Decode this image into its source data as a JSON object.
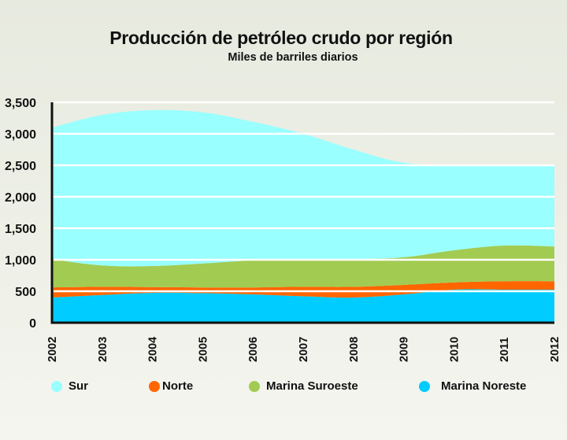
{
  "chart_data": {
    "type": "area",
    "stacked": true,
    "title": "Producción de petróleo crudo por región",
    "subtitle": "Miles de barriles diarios",
    "xlabel": "",
    "ylabel": "",
    "x": [
      "2002",
      "2003",
      "2004",
      "2005",
      "2006",
      "2007",
      "2008",
      "2009",
      "2010",
      "2011",
      "2012"
    ],
    "ylim": [
      0,
      3500
    ],
    "yticks": [
      0,
      500,
      1000,
      1500,
      2000,
      2500,
      3000,
      3500
    ],
    "ytick_labels": [
      "0",
      "500",
      "1,000",
      "1,500",
      "2,000",
      "2,500",
      "3,000",
      "3,500"
    ],
    "grid": true,
    "legend_position": "bottom",
    "series": [
      {
        "name": "Marina Noreste",
        "color": "#00ccff",
        "values": [
          400,
          440,
          475,
          470,
          450,
          420,
          400,
          450,
          525,
          525,
          525
        ]
      },
      {
        "name": "Norte",
        "color": "#ff6600",
        "values": [
          160,
          130,
          90,
          90,
          110,
          150,
          170,
          150,
          115,
          135,
          135
        ]
      },
      {
        "name": "Marina Suroeste",
        "color": "#a2cb52",
        "values": [
          450,
          340,
          335,
          380,
          430,
          440,
          440,
          440,
          510,
          565,
          550
        ]
      },
      {
        "name": "Sur",
        "color": "#99ffff",
        "values": [
          2090,
          2390,
          2475,
          2400,
          2200,
          1990,
          1740,
          1500,
          1360,
          1275,
          1280
        ]
      }
    ]
  },
  "legend": [
    {
      "label": "Sur",
      "color": "#99ffff"
    },
    {
      "label": "Norte",
      "color": "#ff6600"
    },
    {
      "label": "Marina Suroeste",
      "color": "#a2cb52"
    },
    {
      "label": "Marina Noreste",
      "color": "#00ccff"
    }
  ]
}
